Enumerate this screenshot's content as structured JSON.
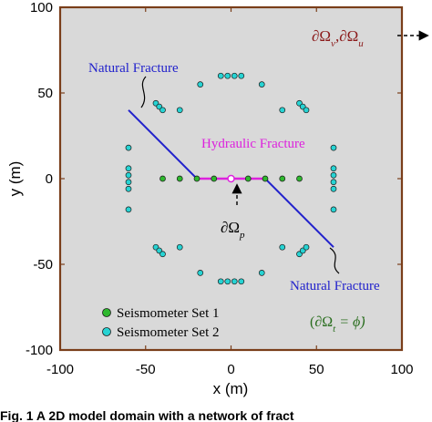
{
  "chart_data": {
    "type": "scatter",
    "xlabel": "x (m)",
    "ylabel": "y (m)",
    "xlim": [
      -100,
      100
    ],
    "ylim": [
      -100,
      100
    ],
    "xticks": [
      -100,
      -50,
      0,
      50,
      100
    ],
    "yticks": [
      -100,
      -50,
      0,
      50,
      100
    ],
    "grid": false,
    "legend_position": "bottom-left",
    "domain_fill": "#d9d9d9",
    "domain_border": "#7a3e1a",
    "series": [
      {
        "name": "Seismometer Set 1",
        "color": "#2eb82e",
        "points": [
          [
            -40,
            0
          ],
          [
            -30,
            0
          ],
          [
            -20,
            0
          ],
          [
            -10,
            0
          ],
          [
            10,
            0
          ],
          [
            20,
            0
          ],
          [
            30,
            0
          ],
          [
            40,
            0
          ]
        ]
      },
      {
        "name": "Seismometer Set 2",
        "color": "#27d3d3",
        "points": [
          [
            -6,
            60
          ],
          [
            -2,
            60
          ],
          [
            2,
            60
          ],
          [
            6,
            60
          ],
          [
            -6,
            -60
          ],
          [
            -2,
            -60
          ],
          [
            2,
            -60
          ],
          [
            6,
            -60
          ],
          [
            -60,
            6
          ],
          [
            -60,
            2
          ],
          [
            -60,
            -2
          ],
          [
            -60,
            -6
          ],
          [
            60,
            6
          ],
          [
            60,
            2
          ],
          [
            60,
            -2
          ],
          [
            60,
            -6
          ],
          [
            -44,
            44
          ],
          [
            -42,
            42
          ],
          [
            -40,
            40
          ],
          [
            40,
            44
          ],
          [
            42,
            42
          ],
          [
            44,
            40
          ],
          [
            -44,
            -40
          ],
          [
            -42,
            -42
          ],
          [
            -40,
            -44
          ],
          [
            40,
            -44
          ],
          [
            42,
            -42
          ],
          [
            44,
            -40
          ],
          [
            -60,
            18
          ],
          [
            60,
            18
          ],
          [
            -60,
            -18
          ],
          [
            60,
            -18
          ],
          [
            -18,
            55
          ],
          [
            18,
            55
          ],
          [
            -18,
            -55
          ],
          [
            18,
            -55
          ],
          [
            -30,
            40
          ],
          [
            30,
            40
          ],
          [
            -30,
            -40
          ],
          [
            30,
            -40
          ]
        ]
      }
    ],
    "natural_fracture": [
      [
        -60,
        40
      ],
      [
        -20,
        0
      ],
      [
        20,
        0
      ],
      [
        60,
        -40
      ]
    ],
    "hydraulic_fracture": [
      [
        -20,
        0
      ],
      [
        20,
        0
      ]
    ],
    "injection_point": [
      0,
      0
    ],
    "colors": {
      "natural_fracture": "#2222cc",
      "hydraulic_fracture": "#dd22dd",
      "boundary_label": "#8b1a1a",
      "traction_label": "#2a6e1f"
    },
    "annotations": {
      "natural_fracture_top": "Natural Fracture",
      "natural_fracture_bottom": "Natural Fracture",
      "hydraulic_fracture": "Hydraulic Fracture",
      "pressure_boundary": "∂Ω",
      "pressure_boundary_sub": "p",
      "outer_boundary_a": "∂Ω",
      "outer_boundary_a_sub": "v",
      "outer_boundary_sep": ",",
      "outer_boundary_b": "∂Ω",
      "outer_boundary_b_sub": "u",
      "traction_condition": "(∂Ω",
      "traction_condition_sub": "t",
      "traction_condition_rhs": " = ϕ̇)"
    },
    "caption_fragment": "Fig. 1  A 2D model domain with a network of fract"
  }
}
